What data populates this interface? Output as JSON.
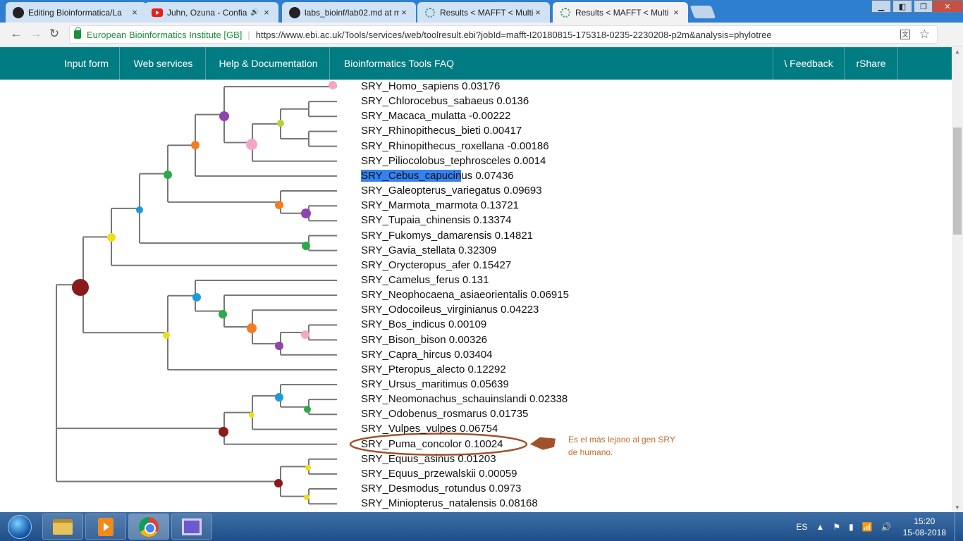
{
  "browser": {
    "tabs": [
      {
        "title": "Editing Bioinformatica/La",
        "icon": "github-icon"
      },
      {
        "title": "Juhn, Ozuna - Confia",
        "icon": "youtube-icon",
        "audio": "🔊"
      },
      {
        "title": "labs_bioinf/lab02.md at m",
        "icon": "github-icon"
      },
      {
        "title": "Results < MAFFT < Multi",
        "icon": "ebi-icon"
      },
      {
        "title": "Results < MAFFT < Multi",
        "icon": "ebi-icon"
      }
    ],
    "site_identity": "European Bioinformatics Institute [GB]",
    "url": "https://www.ebi.ac.uk/Tools/services/web/toolresult.ebi?jobId=mafft-I20180815-175318-0235-2230208-p2m&analysis=phylotree"
  },
  "nav": {
    "items": [
      "Input form",
      "Web services",
      "Help & Documentation",
      "Bioinformatics Tools FAQ"
    ],
    "feedback": "\\ Feedback",
    "share": "rShare"
  },
  "tree": {
    "leaves": [
      {
        "name": "SRY_Homo_sapiens",
        "value": "0.03176"
      },
      {
        "name": "SRY_Chlorocebus_sabaeus",
        "value": "0.0136"
      },
      {
        "name": "SRY_Macaca_mulatta",
        "value": "-0.00222"
      },
      {
        "name": "SRY_Rhinopithecus_bieti",
        "value": "0.00417"
      },
      {
        "name": "SRY_Rhinopithecus_roxellana",
        "value": "-0.00186"
      },
      {
        "name": "SRY_Piliocolobus_tephrosceles",
        "value": "0.0014"
      },
      {
        "name": "SRY_Cebus_capucinus",
        "value": "0.07436",
        "highlight": "SRY_Cebus_capucin"
      },
      {
        "name": "SRY_Galeopterus_variegatus",
        "value": "0.09693"
      },
      {
        "name": "SRY_Marmota_marmota",
        "value": "0.13721"
      },
      {
        "name": "SRY_Tupaia_chinensis",
        "value": "0.13374"
      },
      {
        "name": "SRY_Fukomys_damarensis",
        "value": "0.14821"
      },
      {
        "name": "SRY_Gavia_stellata",
        "value": "0.32309"
      },
      {
        "name": "SRY_Orycteropus_afer",
        "value": "0.15427"
      },
      {
        "name": "SRY_Camelus_ferus",
        "value": "0.131"
      },
      {
        "name": "SRY_Neophocaena_asiaeorientalis",
        "value": "0.06915"
      },
      {
        "name": "SRY_Odocoileus_virginianus",
        "value": "0.04223"
      },
      {
        "name": "SRY_Bos_indicus",
        "value": "0.00109"
      },
      {
        "name": "SRY_Bison_bison",
        "value": "0.00326"
      },
      {
        "name": "SRY_Capra_hircus",
        "value": "0.03404"
      },
      {
        "name": "SRY_Pteropus_alecto",
        "value": "0.12292"
      },
      {
        "name": "SRY_Ursus_maritimus",
        "value": "0.05639"
      },
      {
        "name": "SRY_Neomonachus_schauinslandi",
        "value": "0.02338"
      },
      {
        "name": "SRY_Odobenus_rosmarus",
        "value": "0.01735"
      },
      {
        "name": "SRY_Vulpes_vulpes",
        "value": "0.06754"
      },
      {
        "name": "SRY_Puma_concolor",
        "value": "0.10024"
      },
      {
        "name": "SRY_Equus_asinus",
        "value": "0.01203"
      },
      {
        "name": "SRY_Equus_przewalskii",
        "value": "0.00059"
      },
      {
        "name": "SRY_Desmodus_rotundus",
        "value": "0.0973"
      },
      {
        "name": "SRY_Miniopterus_natalensis",
        "value": "0.08168"
      }
    ],
    "annotation": "Es el más lejano al gen SRY de humano."
  },
  "taskbar": {
    "language": "ES",
    "time": "15:20",
    "date": "15-08-2018"
  }
}
